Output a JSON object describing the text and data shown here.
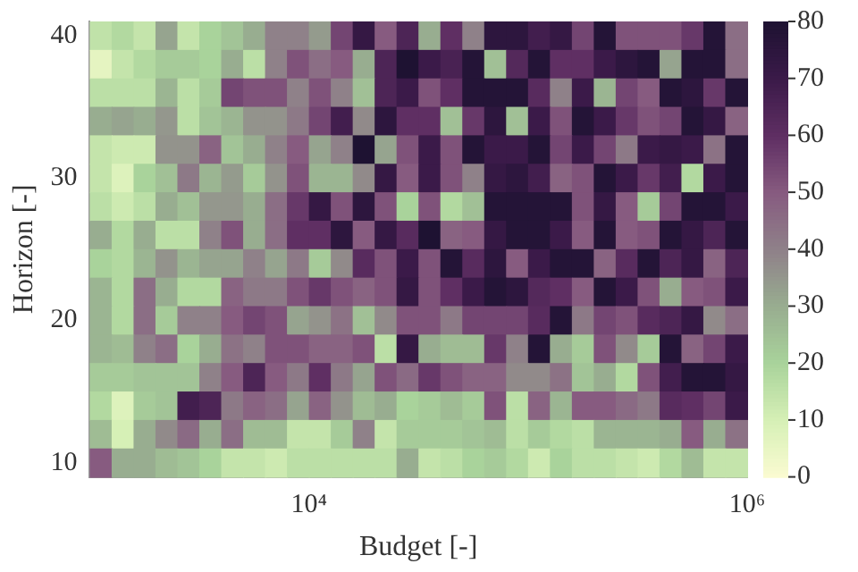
{
  "chart_data": {
    "type": "heatmap",
    "xlabel": "Budget [-]",
    "ylabel": "Horizon [-]",
    "log": "x",
    "xlim": [
      1000,
      1000000
    ],
    "xticks": [
      {
        "value": 10000,
        "label": "10⁴"
      },
      {
        "value": 1000000,
        "label": "10⁶"
      }
    ],
    "ylim": [
      9,
      41
    ],
    "yticks": [
      10,
      20,
      30,
      40
    ],
    "clim": [
      0,
      80
    ],
    "cticks": [
      0,
      10,
      20,
      30,
      40,
      50,
      60,
      70,
      80
    ],
    "cells": [
      [
        15,
        18,
        14,
        32,
        14,
        20,
        24,
        30,
        40,
        40,
        34,
        55,
        72,
        50,
        65,
        30,
        60,
        40,
        75,
        75,
        68,
        72,
        55,
        78,
        52,
        52,
        52,
        58,
        78,
        45
      ],
      [
        6,
        14,
        18,
        22,
        22,
        20,
        30,
        16,
        40,
        52,
        45,
        50,
        30,
        65,
        80,
        70,
        66,
        78,
        25,
        63,
        78,
        60,
        60,
        70,
        75,
        78,
        32,
        78,
        78,
        45
      ],
      [
        16,
        16,
        16,
        28,
        16,
        22,
        55,
        52,
        52,
        40,
        52,
        40,
        25,
        65,
        70,
        52,
        60,
        78,
        78,
        78,
        62,
        40,
        70,
        28,
        55,
        50,
        78,
        75,
        58,
        78
      ],
      [
        30,
        32,
        30,
        35,
        16,
        24,
        28,
        36,
        36,
        42,
        55,
        68,
        38,
        75,
        60,
        60,
        25,
        58,
        75,
        25,
        70,
        52,
        78,
        70,
        58,
        52,
        55,
        78,
        72,
        48
      ],
      [
        14,
        12,
        12,
        36,
        36,
        48,
        24,
        30,
        40,
        50,
        32,
        40,
        80,
        32,
        52,
        70,
        52,
        78,
        70,
        70,
        78,
        55,
        70,
        55,
        42,
        70,
        72,
        70,
        44,
        78
      ],
      [
        14,
        8,
        20,
        25,
        42,
        28,
        34,
        22,
        36,
        52,
        28,
        28,
        38,
        72,
        50,
        70,
        52,
        40,
        72,
        75,
        68,
        48,
        52,
        78,
        70,
        58,
        68,
        18,
        70,
        78
      ],
      [
        16,
        12,
        16,
        30,
        25,
        35,
        35,
        30,
        45,
        58,
        72,
        52,
        75,
        52,
        20,
        52,
        18,
        25,
        78,
        78,
        78,
        78,
        52,
        72,
        50,
        22,
        55,
        78,
        78,
        70
      ],
      [
        30,
        18,
        30,
        16,
        16,
        40,
        52,
        30,
        45,
        60,
        60,
        75,
        50,
        72,
        62,
        80,
        48,
        50,
        72,
        78,
        78,
        70,
        50,
        78,
        50,
        52,
        78,
        72,
        65,
        78
      ],
      [
        20,
        18,
        28,
        36,
        28,
        32,
        32,
        40,
        32,
        42,
        22,
        38,
        62,
        52,
        70,
        52,
        78,
        62,
        75,
        50,
        70,
        78,
        78,
        48,
        62,
        78,
        65,
        72,
        48,
        65
      ],
      [
        28,
        18,
        45,
        30,
        18,
        18,
        48,
        42,
        42,
        52,
        58,
        52,
        48,
        52,
        72,
        52,
        60,
        70,
        78,
        75,
        63,
        60,
        50,
        78,
        70,
        52,
        30,
        50,
        52,
        70
      ],
      [
        28,
        18,
        45,
        22,
        40,
        40,
        50,
        55,
        52,
        32,
        36,
        44,
        25,
        38,
        52,
        52,
        42,
        55,
        55,
        55,
        62,
        78,
        42,
        55,
        52,
        62,
        65,
        72,
        38,
        45
      ],
      [
        28,
        26,
        40,
        45,
        20,
        30,
        44,
        40,
        52,
        52,
        48,
        48,
        52,
        16,
        72,
        30,
        26,
        26,
        58,
        40,
        78,
        30,
        22,
        52,
        38,
        22,
        78,
        48,
        55,
        70
      ],
      [
        22,
        22,
        24,
        24,
        24,
        40,
        50,
        65,
        50,
        42,
        60,
        42,
        32,
        52,
        46,
        58,
        52,
        48,
        48,
        38,
        38,
        44,
        24,
        30,
        18,
        52,
        68,
        78,
        78,
        72
      ],
      [
        18,
        8,
        22,
        24,
        68,
        65,
        42,
        48,
        45,
        32,
        48,
        36,
        26,
        30,
        20,
        22,
        26,
        22,
        52,
        16,
        48,
        28,
        50,
        50,
        46,
        42,
        62,
        60,
        55,
        70
      ],
      [
        26,
        10,
        30,
        38,
        46,
        30,
        45,
        26,
        26,
        14,
        14,
        22,
        40,
        14,
        22,
        22,
        22,
        24,
        26,
        16,
        22,
        18,
        16,
        28,
        28,
        28,
        30,
        50,
        30,
        44
      ],
      [
        50,
        30,
        30,
        26,
        24,
        20,
        14,
        14,
        12,
        16,
        16,
        16,
        16,
        16,
        30,
        14,
        16,
        20,
        22,
        18,
        12,
        20,
        16,
        16,
        14,
        12,
        18,
        26,
        14,
        14
      ]
    ]
  }
}
